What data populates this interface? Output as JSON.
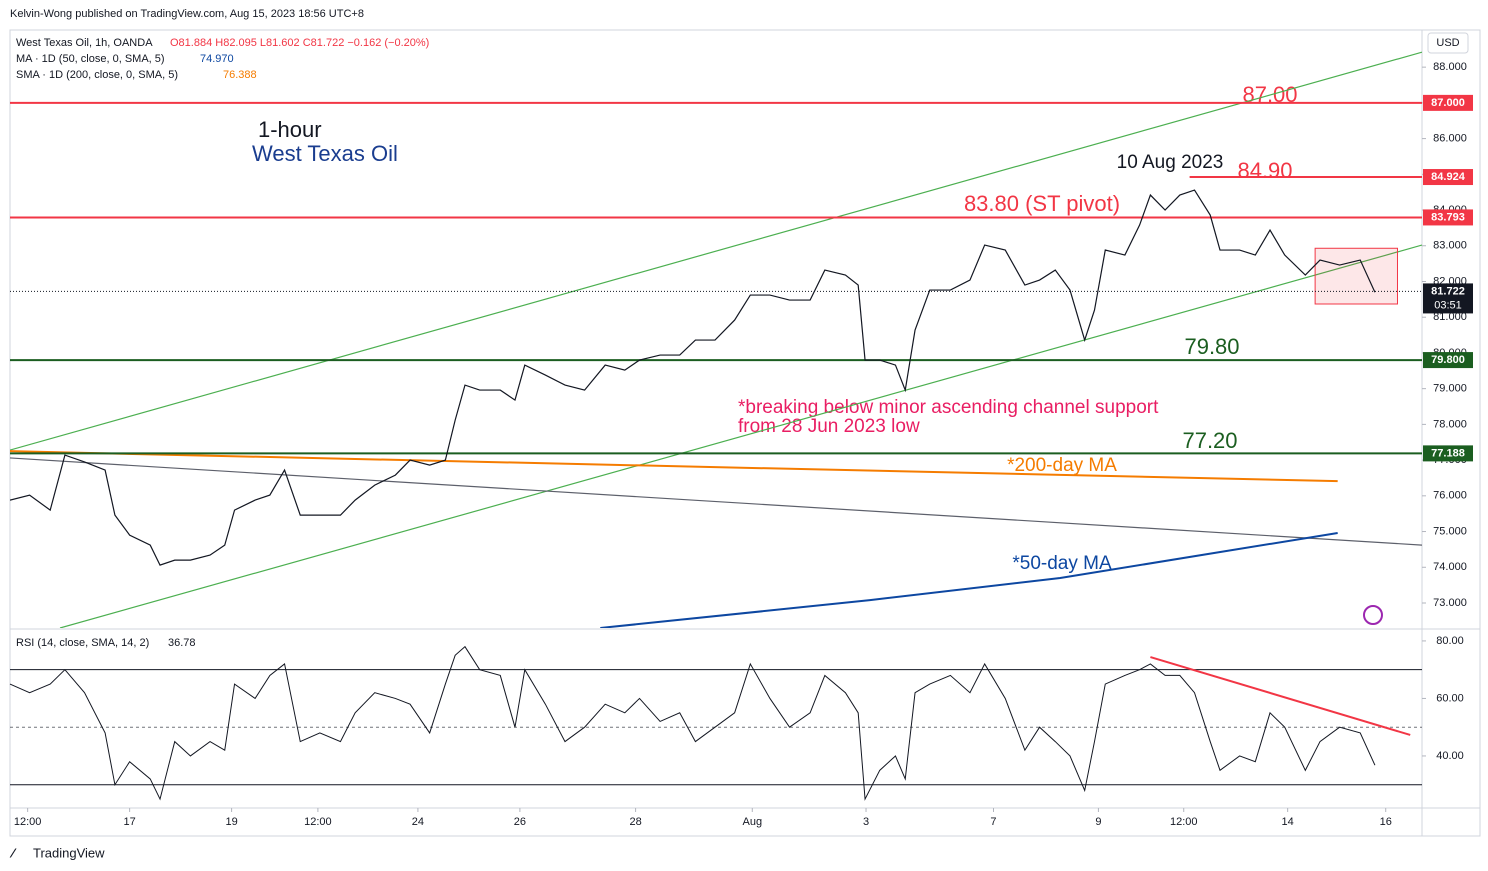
{
  "header": {
    "published": "Kelvin-Wong published on TradingView.com, Aug 15, 2023 18:56 UTC+8",
    "footer": "TradingView"
  },
  "chart_data": {
    "type": "line",
    "symbol": "West Texas Oil, 1h, OANDA",
    "ohlc": "O81.884 H82.095 L81.602 C81.722 −0.162 (−0.20%)",
    "ma50_label": "MA · 1D (50, close, 0, SMA, 5)",
    "ma50_value": "74.970",
    "ma200_label": "SMA · 1D (200, close, 0, SMA, 5)",
    "ma200_value": "76.388",
    "currency": "USD",
    "annotations": {
      "timeframe": "1-hour",
      "name": "West Texas Oil",
      "r87": "87.00",
      "r8490": "84.90",
      "pivot": "83.80 (ST pivot)",
      "date": "10 Aug 2023",
      "s7980": "79.80",
      "s7720": "77.20",
      "ma200": "*200-day MA",
      "ma50": "*50-day MA",
      "note1": "*breaking below minor ascending channel support",
      "note2": "from 28 Jun 2023 low"
    },
    "xlim": [
      0,
      144
    ],
    "ylim": [
      72.3,
      89.04
    ],
    "yticks": [
      {
        "value": 73,
        "label": "73.000"
      },
      {
        "value": 74,
        "label": "74.000"
      },
      {
        "value": 75,
        "label": "75.000"
      },
      {
        "value": 76,
        "label": "76.000"
      },
      {
        "value": 77,
        "label": "77.000"
      },
      {
        "value": 78,
        "label": "78.000"
      },
      {
        "value": 79,
        "label": "79.000"
      },
      {
        "value": 80,
        "label": "80.000"
      },
      {
        "value": 81,
        "label": "81.000"
      },
      {
        "value": 82,
        "label": "82.000"
      },
      {
        "value": 83,
        "label": "83.000"
      },
      {
        "value": 84,
        "label": "84.000"
      },
      {
        "value": 85,
        "label": "85.000"
      },
      {
        "value": 86,
        "label": "86.000"
      },
      {
        "value": 87,
        "label": "87.000"
      },
      {
        "value": 88,
        "label": "88.000"
      }
    ],
    "xticks": [
      {
        "value": 1.8,
        "label": "12:00"
      },
      {
        "value": 12.2,
        "label": "17"
      },
      {
        "value": 22.6,
        "label": "19"
      },
      {
        "value": 31.4,
        "label": "12:00"
      },
      {
        "value": 41.6,
        "label": "24"
      },
      {
        "value": 52,
        "label": "26"
      },
      {
        "value": 63.8,
        "label": "28"
      },
      {
        "value": 75.7,
        "label": "Aug"
      },
      {
        "value": 87.3,
        "label": "3"
      },
      {
        "value": 100.3,
        "label": "7"
      },
      {
        "value": 111,
        "label": "9"
      },
      {
        "value": 119.7,
        "label": "12:00"
      },
      {
        "value": 130.3,
        "label": "14"
      },
      {
        "value": 140.3,
        "label": "16"
      }
    ],
    "price": {
      "color": "#131722",
      "x": [
        0,
        2.0,
        4.1,
        5.6,
        7.6,
        9.7,
        10.7,
        12.2,
        14.3,
        15.3,
        16.8,
        18.4,
        20.4,
        21.9,
        22.9,
        25.0,
        26.5,
        28.0,
        29.6,
        31.6,
        33.7,
        35.2,
        37.2,
        39.3,
        40.8,
        42.8,
        44.4,
        45.4,
        46.4,
        47.9,
        50.0,
        51.5,
        52.5,
        54.6,
        56.6,
        58.6,
        60.7,
        62.7,
        64.2,
        66.3,
        68.3,
        69.9,
        71.9,
        73.9,
        75.5,
        77.5,
        79.5,
        81.6,
        83.1,
        85.2,
        86.5,
        87.2,
        88.7,
        90.3,
        91.3,
        92.3,
        93.8,
        95.9,
        97.9,
        99.4,
        101.5,
        103.5,
        105.0,
        106.6,
        108.1,
        109.6,
        110.6,
        111.7,
        113.7,
        115.2,
        116.3,
        117.8,
        119.3,
        120.8,
        122.4,
        123.4,
        125.4,
        127.0,
        128.5,
        130.0,
        132.1,
        133.6,
        135.6,
        137.7,
        139.2
      ],
      "values": [
        75.88,
        76.02,
        75.6,
        77.14,
        76.95,
        76.72,
        75.46,
        74.9,
        74.62,
        74.06,
        74.2,
        74.2,
        74.34,
        74.62,
        75.6,
        75.88,
        76.02,
        76.72,
        75.46,
        75.46,
        75.46,
        75.88,
        76.3,
        76.58,
        77.0,
        76.86,
        77.0,
        78.12,
        79.1,
        78.96,
        78.96,
        78.68,
        79.66,
        79.38,
        79.1,
        78.96,
        79.66,
        79.52,
        79.8,
        79.94,
        79.94,
        80.36,
        80.36,
        80.92,
        81.62,
        81.62,
        81.48,
        81.48,
        82.32,
        82.18,
        81.9,
        79.8,
        79.8,
        79.66,
        78.96,
        80.64,
        81.76,
        81.76,
        82.04,
        83.02,
        82.88,
        81.9,
        82.04,
        82.32,
        81.76,
        80.36,
        81.2,
        82.88,
        82.74,
        83.58,
        84.42,
        84.0,
        84.42,
        84.56,
        83.86,
        82.88,
        82.88,
        82.74,
        83.44,
        82.74,
        82.18,
        82.6,
        82.46,
        82.6,
        81.7
      ]
    },
    "overlays": [
      {
        "color": "#4caf50",
        "x": [
          0,
          144
        ],
        "y": [
          77.28,
          88.42
        ]
      },
      {
        "color": "#4caf50",
        "x": [
          5.1,
          144
        ],
        "y": [
          72.3,
          83.02
        ]
      },
      {
        "color": "#5d606b",
        "x": [
          0,
          144
        ],
        "y": [
          77.06,
          74.62
        ]
      },
      {
        "color": "#f57c00",
        "x": [
          0,
          135.4
        ],
        "y": [
          77.25,
          76.41
        ]
      },
      {
        "color": "#0d47a1",
        "x": [
          60.2,
          87.7,
          107.1,
          135.4
        ],
        "y": [
          72.3,
          73.08,
          73.7,
          74.96
        ]
      }
    ],
    "levels": [
      {
        "value": 87,
        "label": "87.000",
        "color": "#f23645"
      },
      {
        "value": 84.924,
        "label": "84.924",
        "color": "#f23645",
        "x_start": 120.3
      },
      {
        "value": 83.793,
        "label": "83.793",
        "color": "#f23645"
      },
      {
        "value": 79.8,
        "label": "79.800",
        "color": "#1b5e20"
      },
      {
        "value": 77.188,
        "label": "77.188",
        "color": "#1b5e20"
      }
    ],
    "last_price": {
      "value": 81.722,
      "label": "81.722",
      "countdown": "03:51",
      "color": "#131722"
    },
    "box": {
      "x": [
        133.1,
        141.5
      ],
      "y": [
        82.93,
        81.37
      ],
      "color": "#f23645"
    },
    "rsi": {
      "label": "RSI (14, close, SMA, 14, 2)",
      "last": "36.78",
      "color": "#131722",
      "ylim": [
        21.9,
        83.8
      ],
      "yticks": [
        {
          "value": 40,
          "label": "40.00"
        },
        {
          "value": 60,
          "label": "60.00"
        },
        {
          "value": 80,
          "label": "80.00"
        }
      ],
      "bands": [
        70,
        50,
        30
      ],
      "values": [
        65,
        62,
        65,
        70,
        62,
        48,
        30,
        38,
        32,
        25,
        45,
        40,
        45,
        42,
        65,
        60,
        68,
        72,
        45,
        48,
        45,
        55,
        62,
        60,
        58,
        48,
        65,
        75,
        78,
        70,
        68,
        50,
        70,
        58,
        45,
        50,
        58,
        55,
        60,
        52,
        55,
        45,
        50,
        55,
        72,
        60,
        50,
        55,
        68,
        62,
        55,
        25,
        35,
        40,
        32,
        62,
        65,
        68,
        62,
        72,
        60,
        42,
        50,
        45,
        40,
        28,
        45,
        65,
        68,
        70,
        72,
        68,
        68,
        62,
        45,
        35,
        40,
        38,
        55,
        50,
        35,
        45,
        50,
        48,
        36.78
      ],
      "trend": {
        "color": "#f23645",
        "x": [
          116.3,
          142.8
        ],
        "y": [
          74.4,
          47.3
        ]
      }
    }
  }
}
